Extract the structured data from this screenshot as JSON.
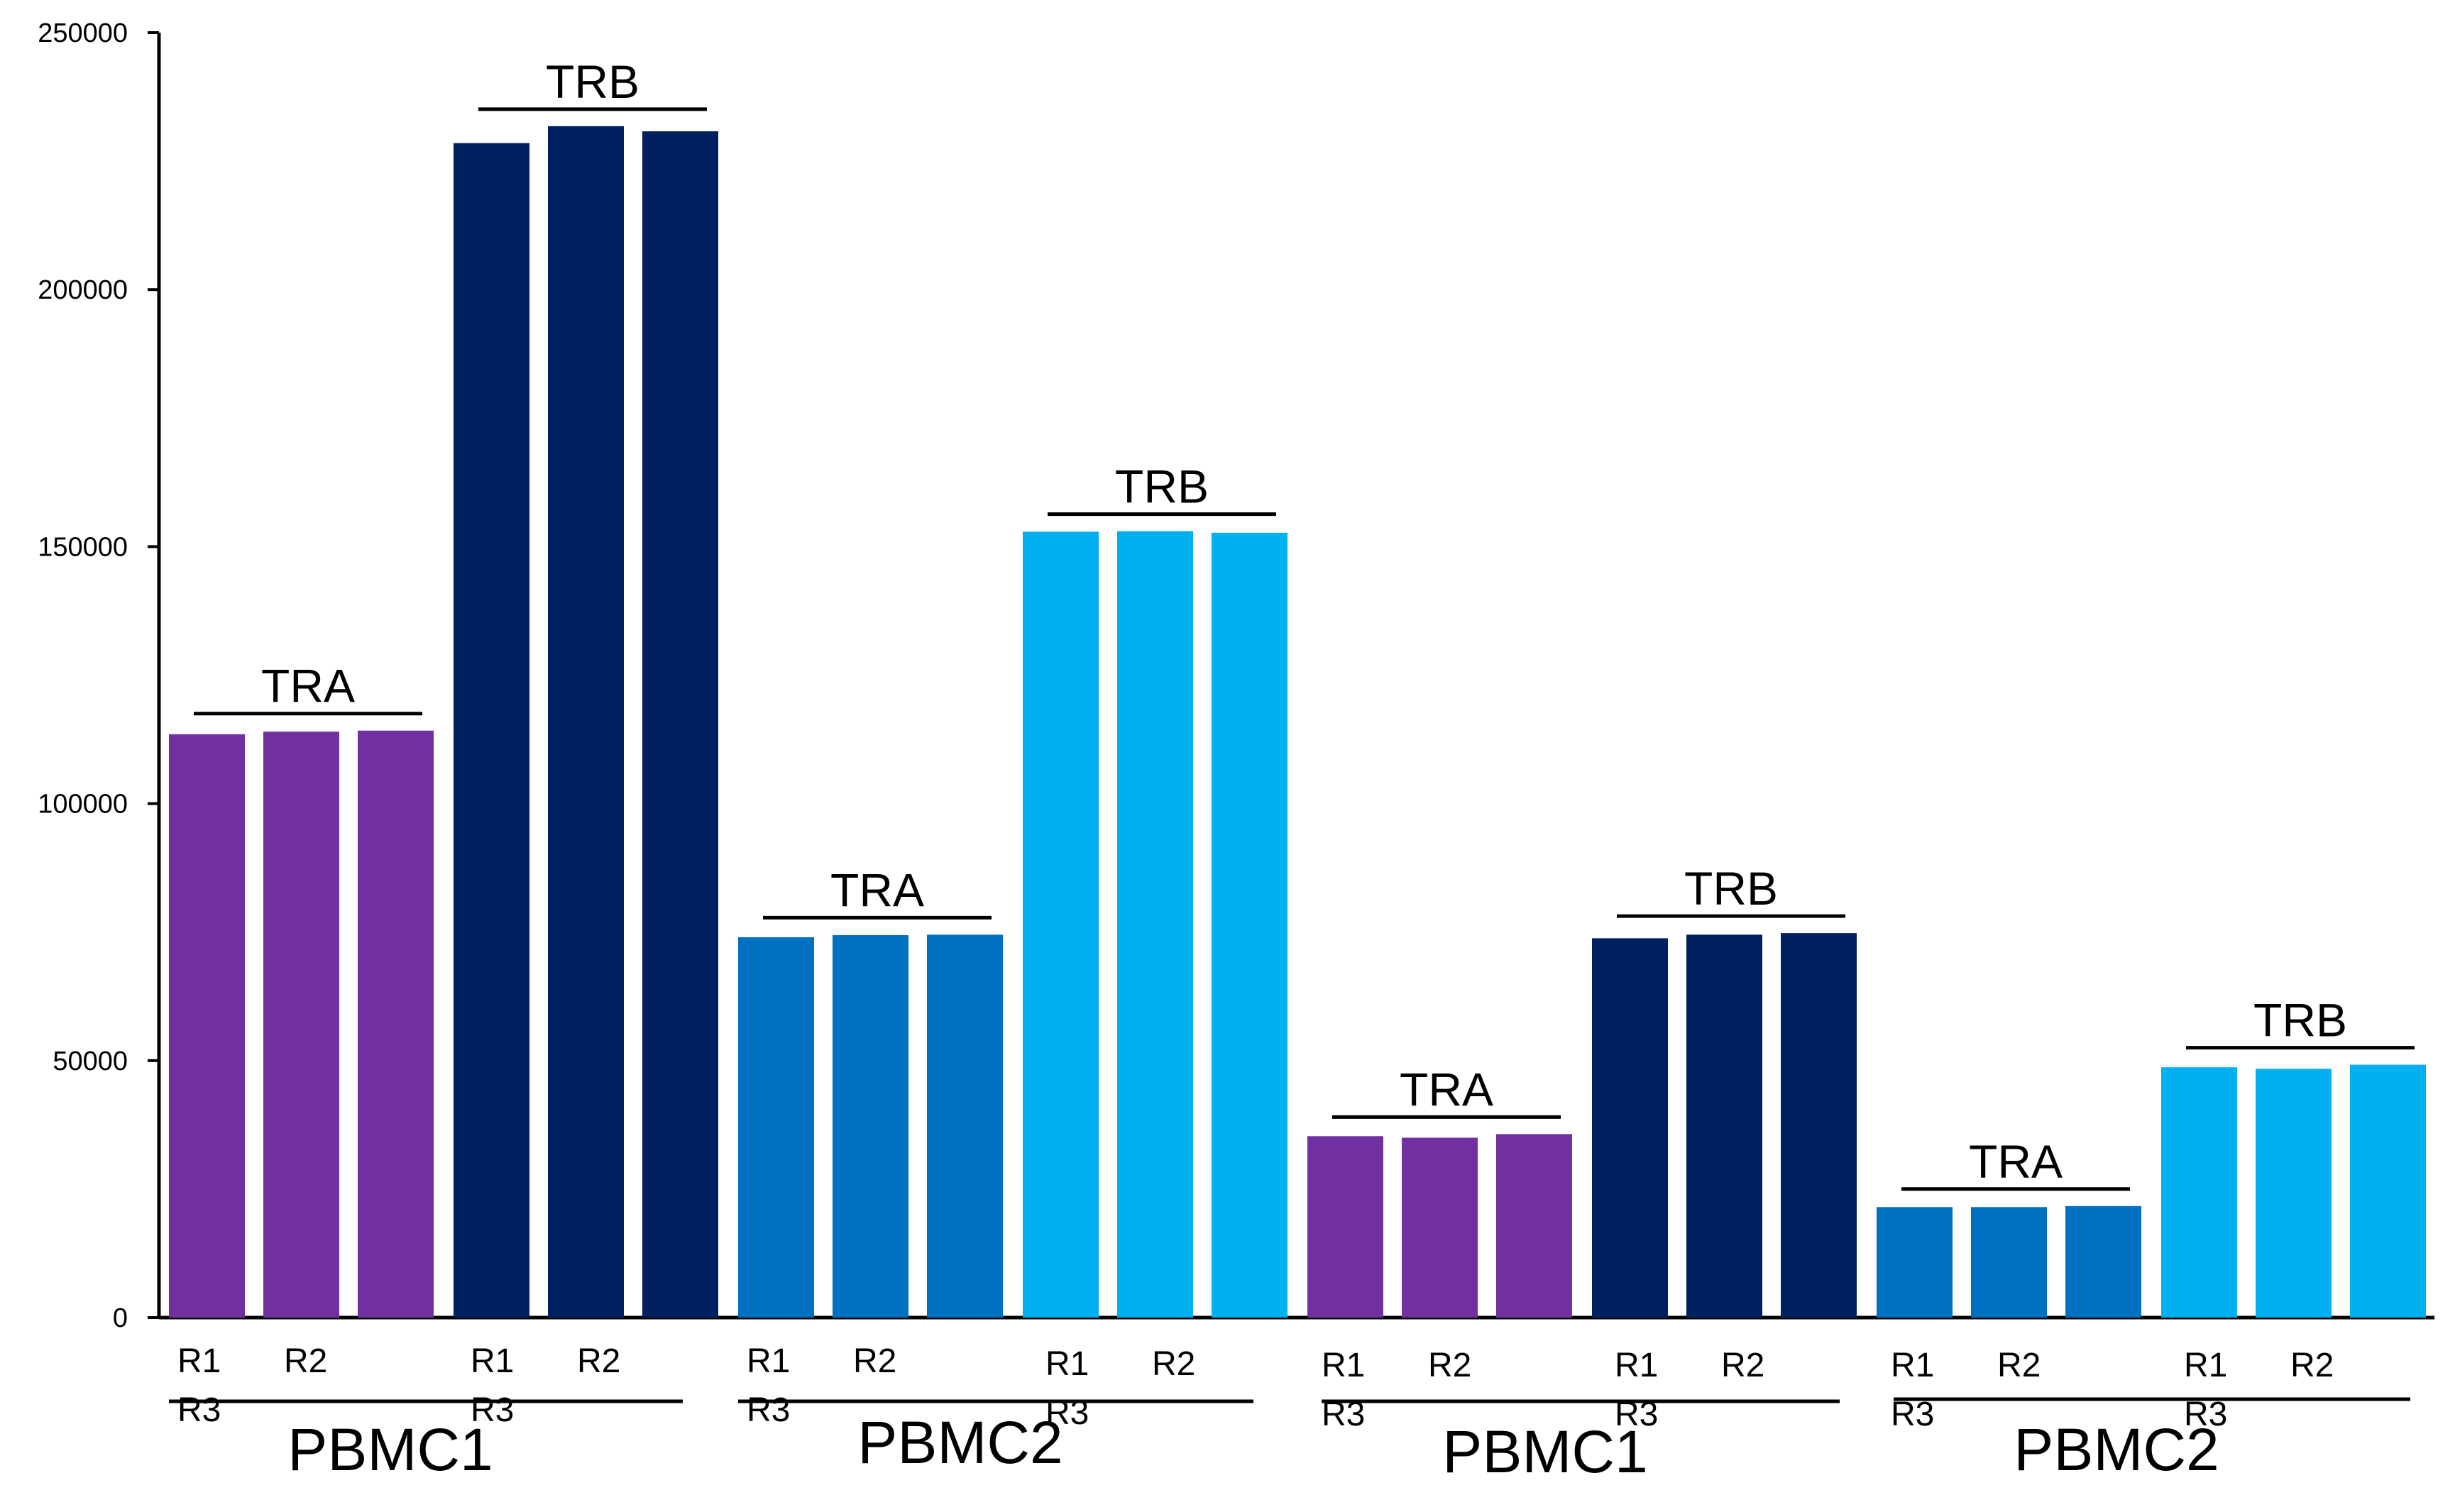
{
  "chart_data": {
    "type": "bar",
    "title": "",
    "xlabel": "",
    "ylabel": "",
    "ylim": [
      0,
      250000
    ],
    "yticks": [
      "0",
      "50000",
      "100000",
      "150000",
      "200000",
      "250000"
    ],
    "grid": false,
    "legend": "none",
    "groups": [
      {
        "gene": "TRA",
        "sample": "PBMC1",
        "color": "#7030a0",
        "labels": [
          "R1",
          "R2",
          "R3"
        ],
        "values": [
          113500,
          114000,
          114200
        ]
      },
      {
        "gene": "TRB",
        "sample": "PBMC1",
        "color": "#002060",
        "labels": [
          "R1",
          "R2",
          "R3"
        ],
        "values": [
          228500,
          231800,
          230800
        ]
      },
      {
        "gene": "TRA",
        "sample": "PBMC2",
        "color": "#0070c0",
        "labels": [
          "R1",
          "R2",
          "R3"
        ],
        "values": [
          74000,
          74400,
          74500
        ]
      },
      {
        "gene": "TRB",
        "sample": "PBMC2",
        "color": "#00b0f0",
        "labels": [
          "R1",
          "R2",
          "R3"
        ],
        "values": [
          152900,
          153000,
          152700
        ]
      },
      {
        "gene": "TRA",
        "sample": "PBMC1",
        "color": "#7030a0",
        "labels": [
          "R1",
          "R2",
          "R3"
        ],
        "values": [
          35300,
          35000,
          35700
        ]
      },
      {
        "gene": "TRB",
        "sample": "PBMC1",
        "color": "#002060",
        "labels": [
          "R1",
          "R2",
          "R3"
        ],
        "values": [
          73800,
          74500,
          74800
        ]
      },
      {
        "gene": "TRA",
        "sample": "PBMC2",
        "color": "#0070c0",
        "labels": [
          "R1",
          "R2",
          "R3"
        ],
        "values": [
          21500,
          21500,
          21700
        ]
      },
      {
        "gene": "TRB",
        "sample": "PBMC2",
        "color": "#00b0f0",
        "labels": [
          "R1",
          "R2",
          "R3"
        ],
        "values": [
          48700,
          48400,
          49200
        ]
      }
    ],
    "sample_labels": [
      "PBMC1",
      "PBMC2",
      "PBMC1",
      "PBMC2"
    ]
  }
}
